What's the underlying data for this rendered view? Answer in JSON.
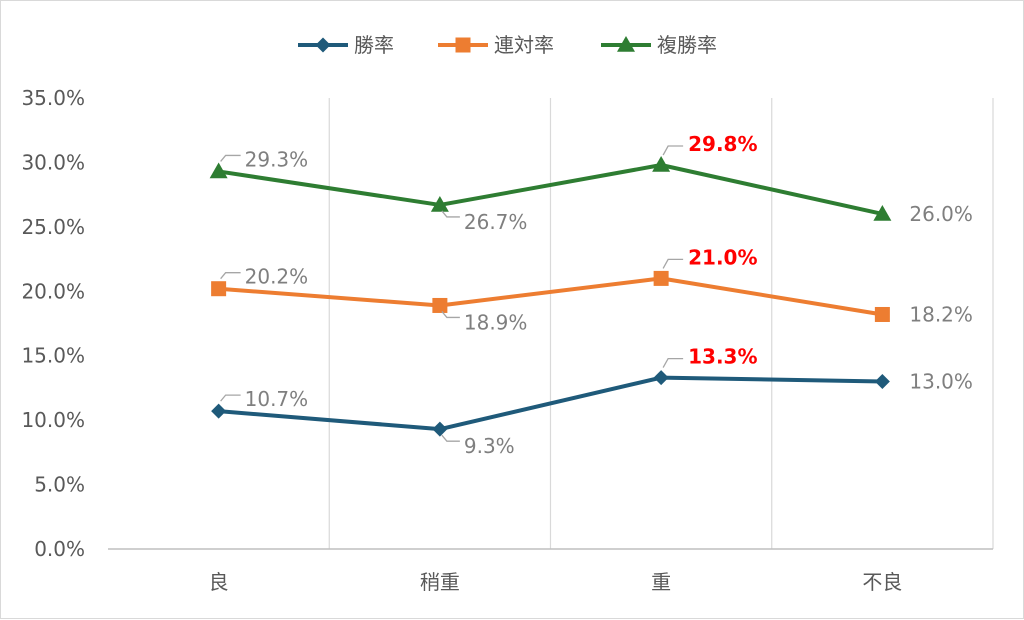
{
  "chart_data": {
    "type": "line",
    "title": "",
    "xlabel": "",
    "ylabel": "",
    "categories": [
      "良",
      "稍重",
      "重",
      "不良"
    ],
    "ylim": [
      0,
      0.35
    ],
    "y_ticks": [
      "0.0%",
      "5.0%",
      "10.0%",
      "15.0%",
      "20.0%",
      "25.0%",
      "30.0%",
      "35.0%"
    ],
    "y_tick_values": [
      0,
      0.05,
      0.1,
      0.15,
      0.2,
      0.25,
      0.3,
      0.35
    ],
    "vertical_gridlines": true,
    "horizontal_gridlines": false,
    "legend_position": "top",
    "series": [
      {
        "name": "勝率",
        "color": "#1f5a7a",
        "marker": "diamond",
        "values": [
          0.107,
          0.093,
          0.133,
          0.13
        ],
        "labels": [
          "10.7%",
          "9.3%",
          "13.3%",
          "13.0%"
        ],
        "highlight": [
          false,
          false,
          true,
          false
        ]
      },
      {
        "name": "連対率",
        "color": "#ed7d31",
        "marker": "square",
        "values": [
          0.202,
          0.189,
          0.21,
          0.182
        ],
        "labels": [
          "20.2%",
          "18.9%",
          "21.0%",
          "18.2%"
        ],
        "highlight": [
          false,
          false,
          true,
          false
        ]
      },
      {
        "name": "複勝率",
        "color": "#2e7d32",
        "marker": "triangle",
        "values": [
          0.293,
          0.267,
          0.298,
          0.26
        ],
        "labels": [
          "29.3%",
          "26.7%",
          "29.8%",
          "26.0%"
        ],
        "highlight": [
          false,
          false,
          true,
          false
        ]
      }
    ],
    "colors": {
      "highlight_label": "#ff0000",
      "normal_label": "#7f7f7f",
      "axis": "#bfbfbf",
      "grid": "#d9d9d9"
    }
  }
}
